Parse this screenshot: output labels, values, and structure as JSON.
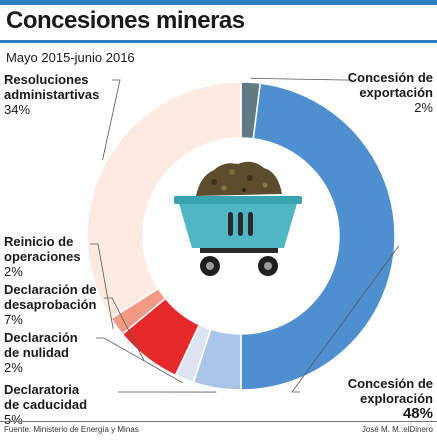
{
  "header": {
    "title": "Concesiones mineras",
    "subtitle": "Mayo 2015-junio 2016"
  },
  "chart_data": {
    "type": "pie",
    "donut": true,
    "title": "Concesiones mineras",
    "subtitle": "Mayo 2015-junio 2016",
    "slices": [
      {
        "line1": "Concesión de",
        "line2": "exportación",
        "pct_label": "2%",
        "value": 2,
        "color": "#607b84"
      },
      {
        "line1": "Concesión de",
        "line2": "exploración",
        "pct_label": "48%",
        "value": 48,
        "color": "#4e8fd0"
      },
      {
        "line1": "Declaratoria",
        "line2": "de caducidad",
        "pct_label": "5%",
        "value": 5,
        "color": "#a8c4e6"
      },
      {
        "line1": "Declaración",
        "line2": "de nulidad",
        "pct_label": "2%",
        "value": 2,
        "color": "#dde4f1"
      },
      {
        "line1": "Declaración de",
        "line2": "desaprobación",
        "pct_label": "7%",
        "value": 7,
        "color": "#e62a2a"
      },
      {
        "line1": "Reinicio de",
        "line2": "operaciones",
        "pct_label": "2%",
        "value": 2,
        "color": "#f39a86"
      },
      {
        "line1": "Resoluciones",
        "line2": "administartivas",
        "pct_label": "34%",
        "value": 34,
        "color": "#fdebe2"
      }
    ],
    "center_icon": "mining-cart-icon"
  },
  "footer": {
    "source": "Fuente: Ministerio de Energía y Minas",
    "credit": "José M. M.:elDinero"
  }
}
